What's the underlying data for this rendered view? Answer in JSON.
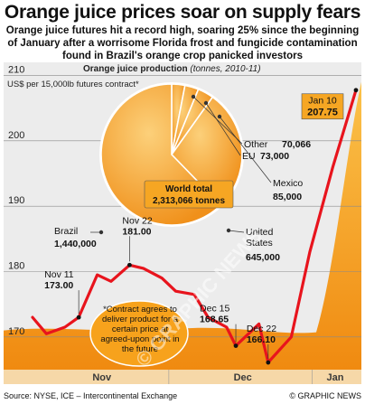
{
  "headline": "Orange juice prices soar on supply fears",
  "intro": "Orange juice futures hit a record high, soaring 25% since the beginning of January after a worrisome Florida frost and fungicide contamination found in Brazil's orange crop panicked investors",
  "footer": {
    "source": "Source: NYSE, ICE – Intercontinental Exchange",
    "credit": "© GRAPHIC NEWS"
  },
  "watermark": "© GRAPHIC NEWS",
  "colors": {
    "line": "#e8141d",
    "juice": "#f7a21c",
    "orange": "#f39a1f",
    "panel_bg": "#ececec"
  },
  "chart_data": [
    {
      "type": "line",
      "title": "",
      "ylabel": "US$ per 15,000lb futures contract*",
      "ylim": [
        165,
        212
      ],
      "yticks": [
        170,
        180,
        190,
        200,
        210
      ],
      "x_categories": [
        "Nov",
        "Dec",
        "Jan"
      ],
      "grid": true,
      "series": [
        {
          "name": "",
          "x": [
            "Nov 1",
            "Nov 4",
            "Nov 8",
            "Nov 11",
            "Nov 15",
            "Nov 18",
            "Nov 22",
            "Nov 25",
            "Nov 29",
            "Dec 2",
            "Dec 6",
            "Dec 9",
            "Dec 13",
            "Dec 15",
            "Dec 20",
            "Dec 22",
            "Dec 27",
            "Dec 31",
            "Jan 5",
            "Jan 10"
          ],
          "values": [
            173.0,
            170.5,
            171.5,
            173.0,
            179.5,
            178.5,
            181.0,
            180.5,
            179.0,
            177.0,
            176.5,
            173.0,
            171.5,
            168.65,
            172.0,
            166.1,
            170.0,
            183.0,
            196.0,
            207.75
          ]
        }
      ],
      "annotations": [
        {
          "label": "Nov 11",
          "value": "173.00"
        },
        {
          "label": "Nov 22",
          "value": "181.00"
        },
        {
          "label": "Dec 15",
          "value": "168.65"
        },
        {
          "label": "Dec 22",
          "value": "166.10"
        },
        {
          "label": "Jan 10",
          "value": "207.75"
        }
      ],
      "note": "*Contract agrees to deliver product for a certain price at agreed-upon point in the future"
    },
    {
      "type": "pie",
      "title": "Orange juice production",
      "subtitle": "(tonnes, 2010-11)",
      "unit": "tonnes",
      "total_label": "World total",
      "total_value": "2,313,066 tonnes",
      "slices": [
        {
          "name": "Brazil",
          "value": 1440000,
          "value_label": "1,440,000"
        },
        {
          "name": "United States",
          "value": 645000,
          "value_label": "645,000"
        },
        {
          "name": "Mexico",
          "value": 85000,
          "value_label": "85,000"
        },
        {
          "name": "EU",
          "value": 73000,
          "value_label": "73,000"
        },
        {
          "name": "Other",
          "value": 70066,
          "value_label": "70,066"
        }
      ]
    }
  ]
}
